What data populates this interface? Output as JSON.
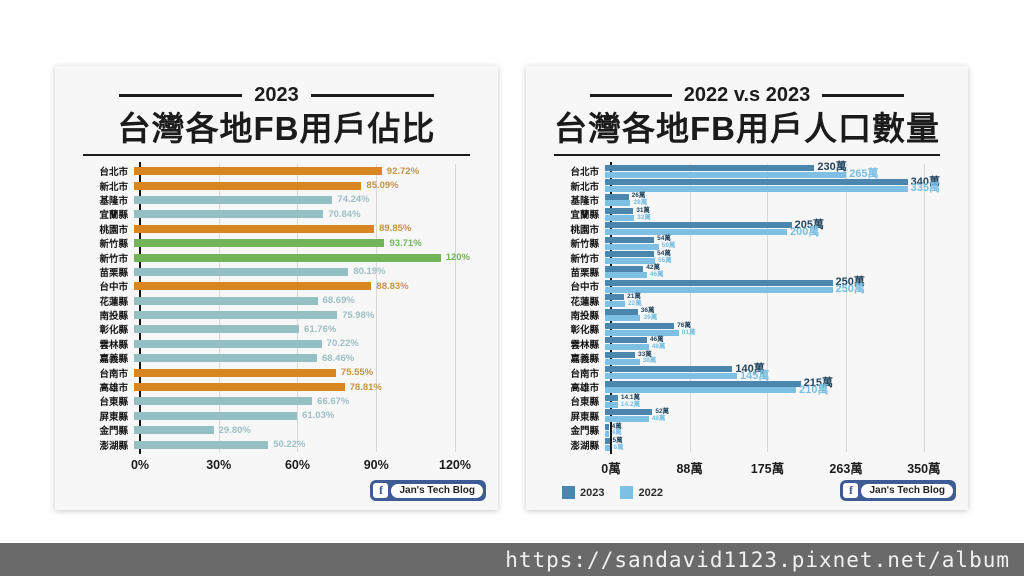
{
  "page": {
    "footer_url": "https://sandavid1123.pixnet.net/album",
    "footer_bg": "#6A6A6A",
    "badge": {
      "icon": "f",
      "label": "Jan's Tech Blog",
      "color": "#3E5B96"
    }
  },
  "chart_data": [
    {
      "type": "bar",
      "orientation": "horizontal",
      "subtitle": "2023",
      "title": "台灣各地FB用戶佔比",
      "xlim": [
        0,
        120
      ],
      "grid": true,
      "xticks": [
        {
          "v": 0,
          "label": "0%"
        },
        {
          "v": 30,
          "label": "30%"
        },
        {
          "v": 60,
          "label": "60%"
        },
        {
          "v": 90,
          "label": "90%"
        },
        {
          "v": 120,
          "label": "120%"
        }
      ],
      "palette": {
        "orange": "#D8861F",
        "teal": "#95C0C3",
        "green": "#72B459"
      },
      "label_palette": {
        "orange": "#C9923F",
        "teal": "#9CC0C4",
        "green": "#72B459"
      },
      "rows": [
        {
          "category": "台北市",
          "value": 92.72,
          "label": "92.72%",
          "color": "orange"
        },
        {
          "category": "新北市",
          "value": 85.09,
          "label": "85.09%",
          "color": "orange"
        },
        {
          "category": "基隆市",
          "value": 74.24,
          "label": "74.24%",
          "color": "teal"
        },
        {
          "category": "宜蘭縣",
          "value": 70.84,
          "label": "70.84%",
          "color": "teal"
        },
        {
          "category": "桃園市",
          "value": 89.85,
          "label": "89.85%",
          "color": "orange"
        },
        {
          "category": "新竹縣",
          "value": 93.71,
          "label": "93.71%",
          "color": "green"
        },
        {
          "category": "新竹市",
          "value": 120,
          "label": "120%",
          "color": "green"
        },
        {
          "category": "苗栗縣",
          "value": 80.19,
          "label": "80.19%",
          "color": "teal"
        },
        {
          "category": "台中市",
          "value": 88.83,
          "label": "88.83%",
          "color": "orange"
        },
        {
          "category": "花蓮縣",
          "value": 68.69,
          "label": "68.69%",
          "color": "teal"
        },
        {
          "category": "南投縣",
          "value": 75.98,
          "label": "75.98%",
          "color": "teal"
        },
        {
          "category": "彰化縣",
          "value": 61.76,
          "label": "61.76%",
          "color": "teal"
        },
        {
          "category": "雲林縣",
          "value": 70.22,
          "label": "70.22%",
          "color": "teal"
        },
        {
          "category": "嘉義縣",
          "value": 68.46,
          "label": "68.46%",
          "color": "teal"
        },
        {
          "category": "台南市",
          "value": 75.55,
          "label": "75.55%",
          "color": "orange"
        },
        {
          "category": "高雄市",
          "value": 78.81,
          "label": "78.81%",
          "color": "orange"
        },
        {
          "category": "台東縣",
          "value": 66.67,
          "label": "66.67%",
          "color": "teal"
        },
        {
          "category": "屏東縣",
          "value": 61.03,
          "label": "61.03%",
          "color": "teal"
        },
        {
          "category": "金門縣",
          "value": 29.8,
          "label": "29.80%",
          "color": "teal"
        },
        {
          "category": "澎湖縣",
          "value": 50.22,
          "label": "50.22%",
          "color": "teal"
        }
      ]
    },
    {
      "type": "bar",
      "orientation": "horizontal",
      "subtitle": "2022 v.s 2023",
      "title": "台灣各地FB用戶人口數量",
      "xlim": [
        0,
        350
      ],
      "grid": true,
      "xticks": [
        {
          "v": 0,
          "label": "0萬"
        },
        {
          "v": 88,
          "label": "88萬"
        },
        {
          "v": 175,
          "label": "175萬"
        },
        {
          "v": 263,
          "label": "263萬"
        },
        {
          "v": 350,
          "label": "350萬"
        }
      ],
      "legend_position": "bottom-left",
      "legend": [
        {
          "name": "2023",
          "color": "#4A86AD"
        },
        {
          "name": "2022",
          "color": "#7EC0E4"
        }
      ],
      "series_colors": {
        "2023": "#4A86AD",
        "2022": "#7EC0E4"
      },
      "series_label_colors": {
        "2023": "#22455E",
        "2022": "#77BDE2"
      },
      "categories": [
        "台北市",
        "新北市",
        "基隆市",
        "宜蘭縣",
        "桃園市",
        "新竹縣",
        "新竹市",
        "苗栗縣",
        "台中市",
        "花蓮縣",
        "南投縣",
        "彰化縣",
        "雲林縣",
        "嘉義縣",
        "台南市",
        "高雄市",
        "台東縣",
        "屏東縣",
        "金門縣",
        "澎湖縣"
      ],
      "series": [
        {
          "name": "2023",
          "values": [
            230,
            340,
            26,
            31,
            205,
            54,
            54,
            42,
            250,
            21,
            36,
            76,
            46,
            33,
            140,
            215,
            14.1,
            52,
            4,
            5
          ],
          "labels": [
            "230萬",
            "340萬",
            "26萬",
            "31萬",
            "205萬",
            "54萬",
            "54萬",
            "42萬",
            "250萬",
            "21萬",
            "36萬",
            "76萬",
            "46萬",
            "33萬",
            "140萬",
            "215萬",
            "14.1萬",
            "52萬",
            "4萬",
            "5萬"
          ]
        },
        {
          "name": "2022",
          "values": [
            265,
            335,
            28,
            32,
            200,
            59,
            55,
            46,
            250,
            22,
            39,
            81,
            48,
            38,
            145,
            210,
            14.2,
            48,
            4,
            6
          ],
          "labels": [
            "265萬",
            "335萬",
            "28萬",
            "32萬",
            "200萬",
            "59萬",
            "55萬",
            "46萬",
            "250萬",
            "22萬",
            "39萬",
            "81萬",
            "48萬",
            "38萬",
            "145萬",
            "210萬",
            "14.2萬",
            "48萬",
            "4萬",
            "6萬"
          ]
        }
      ]
    }
  ]
}
